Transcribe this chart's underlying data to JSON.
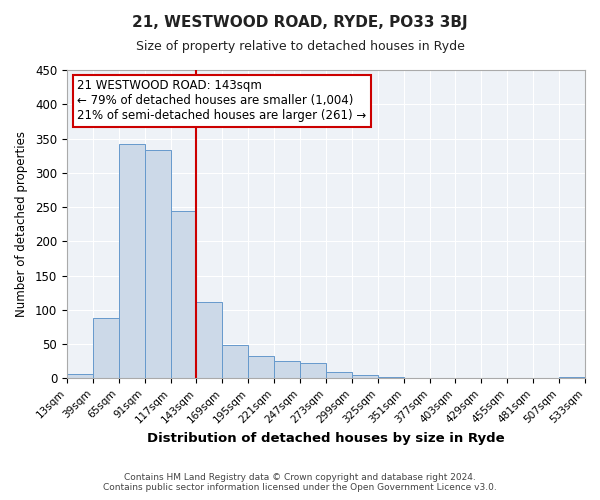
{
  "title": "21, WESTWOOD ROAD, RYDE, PO33 3BJ",
  "subtitle": "Size of property relative to detached houses in Ryde",
  "xlabel": "Distribution of detached houses by size in Ryde",
  "ylabel": "Number of detached properties",
  "footer_line1": "Contains HM Land Registry data © Crown copyright and database right 2024.",
  "footer_line2": "Contains public sector information licensed under the Open Government Licence v3.0.",
  "bin_edges": [
    13,
    39,
    65,
    91,
    117,
    143,
    169,
    195,
    221,
    247,
    273,
    299,
    325,
    351,
    377,
    403,
    429,
    455,
    481,
    507,
    533
  ],
  "bar_heights": [
    7,
    88,
    342,
    333,
    245,
    111,
    49,
    33,
    25,
    22,
    10,
    5,
    2,
    1,
    0,
    0,
    0,
    0,
    0,
    2
  ],
  "bar_color": "#ccd9e8",
  "bar_edge_color": "#6699cc",
  "vline_x": 143,
  "vline_color": "#cc0000",
  "annotation_title": "21 WESTWOOD ROAD: 143sqm",
  "annotation_line1": "← 79% of detached houses are smaller (1,004)",
  "annotation_line2": "21% of semi-detached houses are larger (261) →",
  "annotation_box_edgecolor": "#cc0000",
  "annotation_box_facecolor": "#ffffff",
  "ylim": [
    0,
    450
  ],
  "yticks": [
    0,
    50,
    100,
    150,
    200,
    250,
    300,
    350,
    400,
    450
  ],
  "tick_labels": [
    "13sqm",
    "39sqm",
    "65sqm",
    "91sqm",
    "117sqm",
    "143sqm",
    "169sqm",
    "195sqm",
    "221sqm",
    "247sqm",
    "273sqm",
    "299sqm",
    "325sqm",
    "351sqm",
    "377sqm",
    "403sqm",
    "429sqm",
    "455sqm",
    "481sqm",
    "507sqm",
    "533sqm"
  ],
  "background_color": "#ffffff",
  "plot_bg_color": "#eef2f7",
  "grid_color": "#ffffff"
}
